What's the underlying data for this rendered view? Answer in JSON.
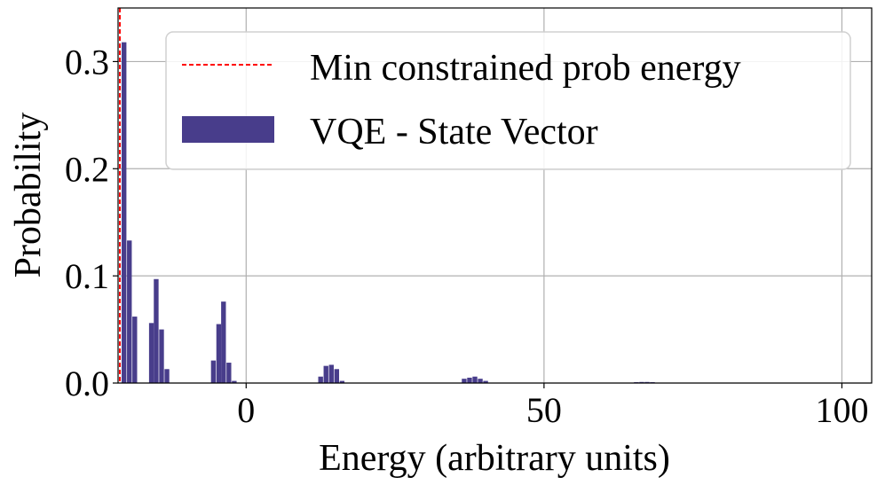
{
  "chart_data": {
    "type": "bar",
    "title": "",
    "xlabel": "Energy (arbitrary units)",
    "ylabel": "Probability",
    "xlim": [
      -21.5,
      105
    ],
    "ylim": [
      0,
      0.35
    ],
    "xticks": [
      0,
      50,
      100
    ],
    "yticks": [
      0.0,
      0.1,
      0.2,
      0.3
    ],
    "xtick_labels": [
      "0",
      "50",
      "100"
    ],
    "ytick_labels": [
      "0.0",
      "0.1",
      "0.2",
      "0.3"
    ],
    "grid": true,
    "legend_position": "top-right",
    "bar_width": 0.8,
    "series": [
      {
        "name": "VQE - State Vector",
        "color": "#483d8b",
        "x": [
          -20.5,
          -19.6,
          -18.7,
          -15.9,
          -15.1,
          -14.2,
          -13.3,
          -5.5,
          -4.6,
          -3.8,
          -2.9,
          -2.0,
          12.5,
          13.4,
          14.3,
          15.2,
          16.1,
          36.6,
          37.5,
          38.4,
          39.3,
          40.2,
          65.5,
          66.4,
          67.3,
          68.2
        ],
        "y": [
          0.318,
          0.133,
          0.062,
          0.056,
          0.097,
          0.05,
          0.013,
          0.021,
          0.055,
          0.076,
          0.019,
          0.002,
          0.006,
          0.016,
          0.017,
          0.013,
          0.002,
          0.004,
          0.005,
          0.006,
          0.004,
          0.002,
          0.0008,
          0.001,
          0.001,
          0.0008
        ]
      }
    ],
    "reference_lines": [
      {
        "name": "Min constrained prob energy",
        "x": -21.2,
        "color": "#ff0000",
        "style": "dashed"
      }
    ]
  }
}
